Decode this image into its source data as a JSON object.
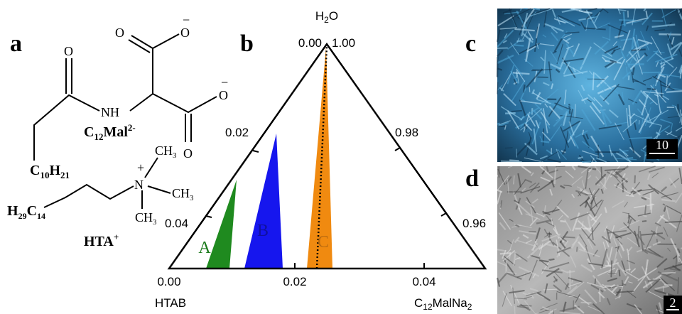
{
  "panel_labels": [
    "a",
    "b",
    "c",
    "d"
  ],
  "structure": {
    "atoms": [
      "O",
      "O",
      "O",
      "O",
      "O",
      "NH"
    ],
    "charges": [
      "−",
      "−"
    ],
    "anion_label": [
      "C",
      "12",
      "Mal",
      "2-"
    ],
    "tail_label": [
      "C",
      "10",
      "H",
      "21"
    ],
    "cation": {
      "n": "N",
      "charge": "+",
      "methyls": [
        [
          "CH",
          "3"
        ],
        [
          "CH",
          "3"
        ],
        [
          "CH",
          "3"
        ]
      ],
      "tail": [
        "H",
        "29",
        "C",
        "14"
      ],
      "label": [
        "HTA",
        "+"
      ]
    }
  },
  "ternary": {
    "apex_label": [
      "H",
      "2",
      "O"
    ],
    "left_label": "HTAB",
    "right_label": [
      "C",
      "12",
      "MalNa",
      "2"
    ],
    "apex_ticks": [
      "0.00",
      "1.00"
    ],
    "bottom_ticks": [
      "0.00",
      "0.02",
      "0.04"
    ],
    "left_ticks": [
      "0.02",
      "0.04"
    ],
    "right_ticks": [
      "0.98",
      "0.96"
    ],
    "regions": [
      "A",
      "B",
      "C"
    ]
  },
  "micrographs": {
    "c_scale": "10",
    "d_scale": "2"
  }
}
